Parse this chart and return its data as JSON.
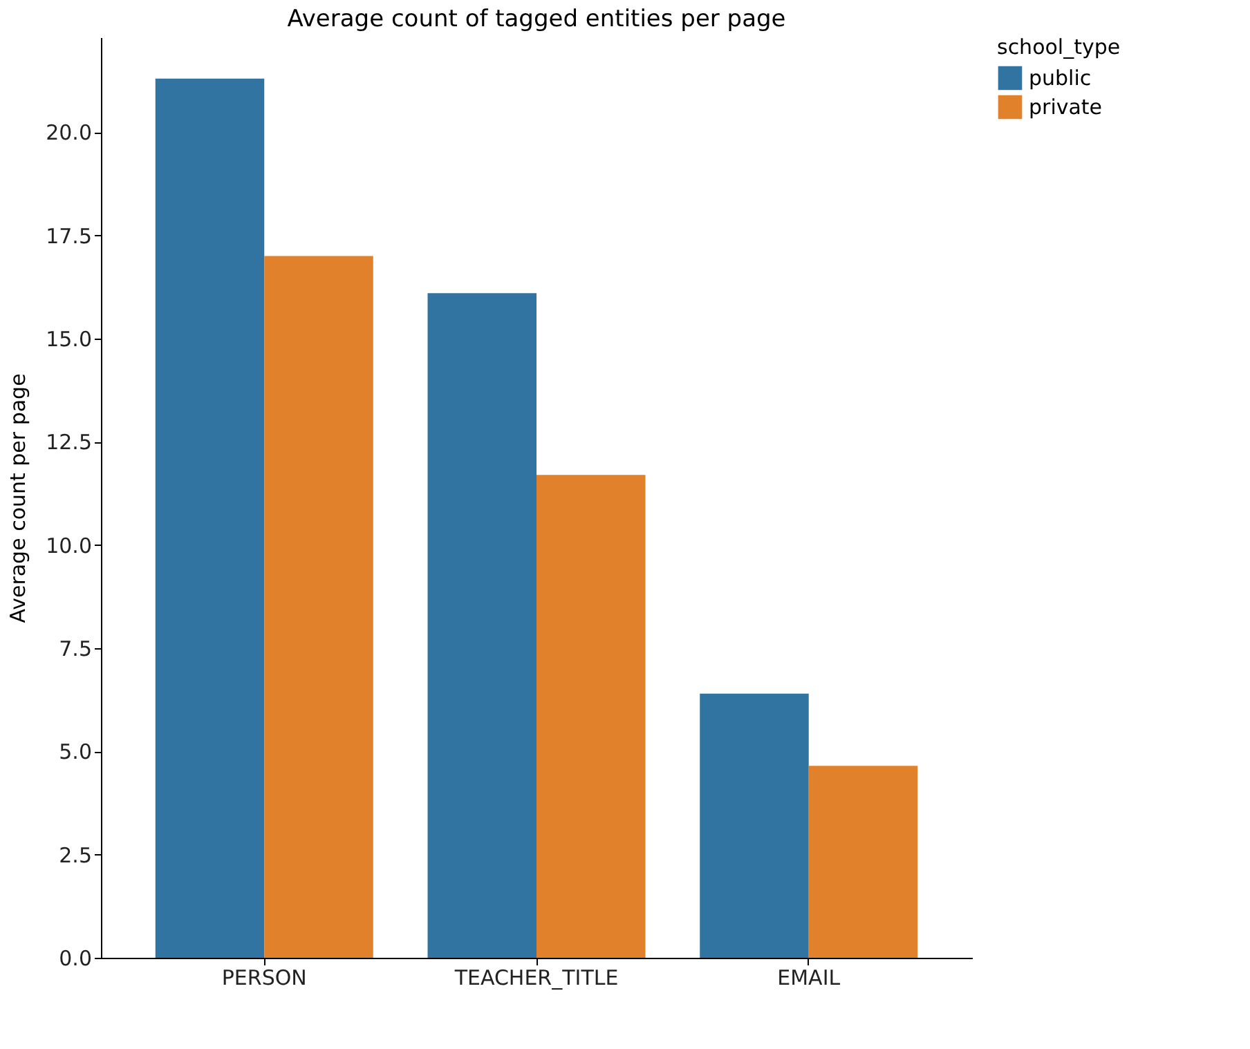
{
  "chart_data": {
    "type": "bar",
    "title": "Average count of tagged entities per page",
    "ylabel": "Average count per page",
    "legend_title": "school_type",
    "legend": "right",
    "categories": [
      "PERSON",
      "TEACHER_TITLE",
      "EMAIL"
    ],
    "series": [
      {
        "name": "public",
        "color": "#3274a1",
        "values": [
          21.3,
          16.1,
          6.4
        ]
      },
      {
        "name": "private",
        "color": "#e1812c",
        "values": [
          17.0,
          11.7,
          4.65
        ]
      }
    ],
    "ylim": [
      0,
      22.3
    ],
    "yticks": [
      {
        "value": 0,
        "label": "0.0"
      },
      {
        "value": 2.5,
        "label": "2.5"
      },
      {
        "value": 5,
        "label": "5.0"
      },
      {
        "value": 7.5,
        "label": "7.5"
      },
      {
        "value": 10,
        "label": "10.0"
      },
      {
        "value": 12.5,
        "label": "12.5"
      },
      {
        "value": 15,
        "label": "15.0"
      },
      {
        "value": 17.5,
        "label": "17.5"
      },
      {
        "value": 20,
        "label": "20.0"
      }
    ],
    "grid": false
  }
}
